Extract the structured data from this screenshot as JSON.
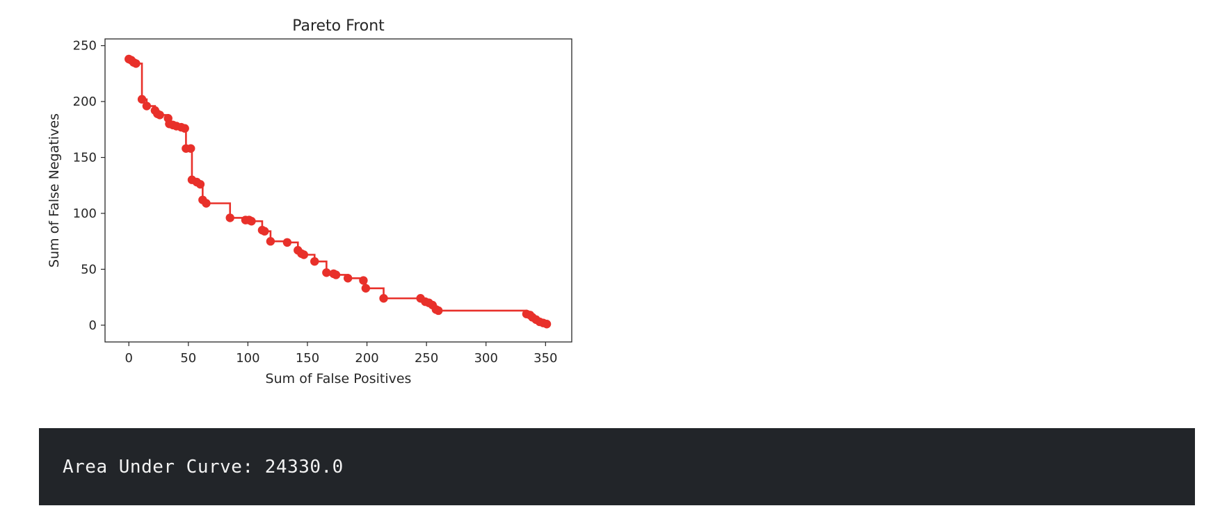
{
  "chart_data": {
    "type": "scatter",
    "title": "Pareto Front",
    "xlabel": "Sum of False Positives",
    "ylabel": "Sum of False Negatives",
    "xlim": [
      -20,
      372
    ],
    "ylim": [
      -15,
      256
    ],
    "xticks": [
      0,
      50,
      100,
      150,
      200,
      250,
      300,
      350
    ],
    "yticks": [
      0,
      50,
      100,
      150,
      200,
      250
    ],
    "grid": false,
    "step_style": "post",
    "series_color": "#e8302a",
    "points": [
      [
        0,
        238
      ],
      [
        2,
        237
      ],
      [
        4,
        235
      ],
      [
        6,
        234
      ],
      [
        11,
        202
      ],
      [
        15,
        196
      ],
      [
        22,
        192
      ],
      [
        24,
        189
      ],
      [
        26,
        188
      ],
      [
        33,
        185
      ],
      [
        34,
        180
      ],
      [
        37,
        179
      ],
      [
        40,
        178
      ],
      [
        44,
        177
      ],
      [
        47,
        176
      ],
      [
        48,
        158
      ],
      [
        52,
        158
      ],
      [
        53,
        130
      ],
      [
        57,
        128
      ],
      [
        60,
        126
      ],
      [
        62,
        112
      ],
      [
        65,
        109
      ],
      [
        85,
        96
      ],
      [
        98,
        94
      ],
      [
        101,
        94
      ],
      [
        103,
        93
      ],
      [
        112,
        85
      ],
      [
        114,
        84
      ],
      [
        119,
        75
      ],
      [
        133,
        74
      ],
      [
        142,
        67
      ],
      [
        145,
        64
      ],
      [
        147,
        63
      ],
      [
        156,
        57
      ],
      [
        166,
        47
      ],
      [
        172,
        46
      ],
      [
        174,
        45
      ],
      [
        184,
        42
      ],
      [
        197,
        40
      ],
      [
        199,
        33
      ],
      [
        214,
        24
      ],
      [
        245,
        24
      ],
      [
        249,
        21
      ],
      [
        252,
        20
      ],
      [
        255,
        18
      ],
      [
        258,
        14
      ],
      [
        260,
        13
      ],
      [
        334,
        10
      ],
      [
        337,
        9
      ],
      [
        339,
        7
      ],
      [
        342,
        5
      ],
      [
        345,
        3
      ],
      [
        348,
        2
      ],
      [
        351,
        1
      ]
    ]
  },
  "output": {
    "text": "Area Under Curve: 24330.0"
  }
}
